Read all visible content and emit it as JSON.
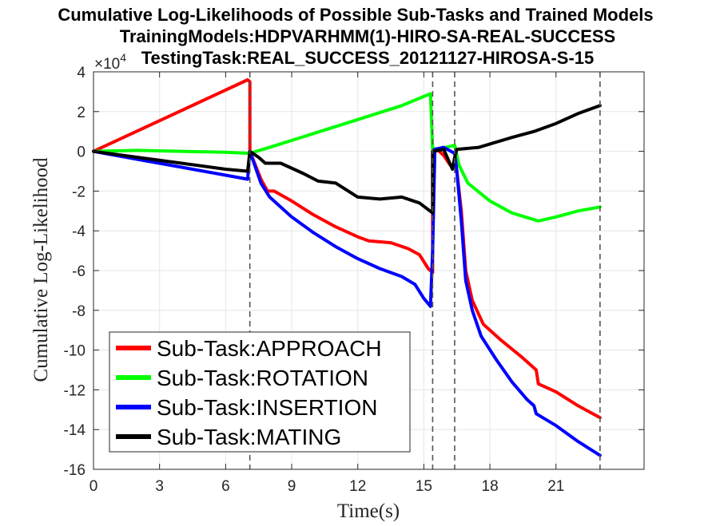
{
  "chart_data": {
    "type": "line",
    "title_lines": [
      "Cumulative Log-Likelihoods of Possible Sub-Tasks and Trained Models",
      "TrainingModels:HDPVARHMM(1)-HIRO-SA-REAL-SUCCESS",
      "TestingTask:REAL_SUCCESS_20121127-HIROSA-S-15"
    ],
    "xlabel": "Time(s)",
    "ylabel": "Cumulative Log-Likelihood",
    "y_exponent_label": "×10",
    "y_exponent_power": "4",
    "xlim": [
      0,
      25
    ],
    "ylim": [
      -16,
      4
    ],
    "xticks": [
      0,
      3,
      6,
      9,
      12,
      15,
      18,
      21
    ],
    "yticks": [
      4,
      2,
      0,
      -2,
      -4,
      -6,
      -8,
      -10,
      -12,
      -14,
      -16
    ],
    "grid": true,
    "legend_position": "bottom-left",
    "event_lines_x": [
      7.1,
      15.4,
      16.4,
      23.0
    ],
    "series": [
      {
        "name": "Sub-Task:APPROACH",
        "color": "#ff0000",
        "points": [
          [
            0,
            0
          ],
          [
            7.0,
            3.6
          ],
          [
            7.1,
            3.5
          ],
          [
            7.1,
            0
          ],
          [
            7.6,
            -1.4
          ],
          [
            7.9,
            -2.0
          ],
          [
            8.2,
            -2.0
          ],
          [
            9,
            -2.5
          ],
          [
            10,
            -3.2
          ],
          [
            11,
            -3.8
          ],
          [
            12,
            -4.3
          ],
          [
            12.5,
            -4.5
          ],
          [
            13.5,
            -4.6
          ],
          [
            14.3,
            -4.9
          ],
          [
            14.8,
            -5.2
          ],
          [
            15.2,
            -5.9
          ],
          [
            15.4,
            -6.1
          ],
          [
            15.4,
            0
          ],
          [
            15.6,
            0.1
          ],
          [
            15.9,
            -0.2
          ],
          [
            16.2,
            -0.7
          ],
          [
            16.4,
            -0.8
          ],
          [
            16.5,
            -1.0
          ],
          [
            16.7,
            -3.0
          ],
          [
            16.9,
            -6.0
          ],
          [
            17.2,
            -7.5
          ],
          [
            17.7,
            -8.7
          ],
          [
            18.5,
            -9.5
          ],
          [
            19.5,
            -10.4
          ],
          [
            20.1,
            -11.0
          ],
          [
            20.2,
            -11.7
          ],
          [
            21,
            -12.1
          ],
          [
            22,
            -12.8
          ],
          [
            23.0,
            -13.4
          ]
        ]
      },
      {
        "name": "Sub-Task:ROTATION",
        "color": "#00ff00",
        "points": [
          [
            0,
            0
          ],
          [
            2,
            0.05
          ],
          [
            4,
            0
          ],
          [
            6,
            -0.05
          ],
          [
            7.1,
            -0.1
          ],
          [
            8,
            0.2
          ],
          [
            10,
            0.9
          ],
          [
            12,
            1.6
          ],
          [
            14,
            2.3
          ],
          [
            15.3,
            2.9
          ],
          [
            15.4,
            0.1
          ],
          [
            16,
            0.2
          ],
          [
            16.4,
            0.3
          ],
          [
            16.6,
            -0.7
          ],
          [
            17,
            -1.6
          ],
          [
            18,
            -2.5
          ],
          [
            19,
            -3.1
          ],
          [
            20.2,
            -3.5
          ],
          [
            21,
            -3.3
          ],
          [
            22,
            -3.0
          ],
          [
            23.0,
            -2.8
          ]
        ]
      },
      {
        "name": "Sub-Task:INSERTION",
        "color": "#0000ff",
        "points": [
          [
            0,
            0
          ],
          [
            2,
            -0.4
          ],
          [
            4,
            -0.8
          ],
          [
            6,
            -1.2
          ],
          [
            7.0,
            -1.4
          ],
          [
            7.1,
            0
          ],
          [
            7.6,
            -1.6
          ],
          [
            8.0,
            -2.3
          ],
          [
            9,
            -3.3
          ],
          [
            10,
            -4.1
          ],
          [
            11,
            -4.8
          ],
          [
            12,
            -5.4
          ],
          [
            13,
            -5.9
          ],
          [
            14,
            -6.3
          ],
          [
            14.6,
            -6.7
          ],
          [
            15.0,
            -7.4
          ],
          [
            15.3,
            -7.8
          ],
          [
            15.4,
            -5.0
          ],
          [
            15.5,
            0.1
          ],
          [
            15.9,
            0.2
          ],
          [
            16.4,
            -0.1
          ],
          [
            16.5,
            -1.0
          ],
          [
            16.7,
            -3.5
          ],
          [
            16.9,
            -6.5
          ],
          [
            17.2,
            -8.0
          ],
          [
            17.6,
            -9.3
          ],
          [
            18.3,
            -10.5
          ],
          [
            19,
            -11.6
          ],
          [
            19.7,
            -12.5
          ],
          [
            20.0,
            -12.8
          ],
          [
            20.1,
            -13.2
          ],
          [
            21,
            -13.8
          ],
          [
            22,
            -14.6
          ],
          [
            23.0,
            -15.3
          ]
        ]
      },
      {
        "name": "Sub-Task:MATING",
        "color": "#000000",
        "points": [
          [
            0,
            0
          ],
          [
            2,
            -0.3
          ],
          [
            4,
            -0.6
          ],
          [
            6,
            -0.9
          ],
          [
            7.0,
            -1.0
          ],
          [
            7.1,
            0
          ],
          [
            7.5,
            -0.3
          ],
          [
            7.8,
            -0.6
          ],
          [
            8.5,
            -0.6
          ],
          [
            9.5,
            -1.1
          ],
          [
            10.2,
            -1.5
          ],
          [
            11,
            -1.6
          ],
          [
            12,
            -2.3
          ],
          [
            13,
            -2.4
          ],
          [
            14,
            -2.3
          ],
          [
            14.8,
            -2.6
          ],
          [
            15.4,
            -3.1
          ],
          [
            15.4,
            0
          ],
          [
            15.9,
            0.1
          ],
          [
            16.3,
            -0.9
          ],
          [
            16.4,
            -0.3
          ],
          [
            16.5,
            0.1
          ],
          [
            17.5,
            0.2
          ],
          [
            19,
            0.7
          ],
          [
            20,
            1.0
          ],
          [
            21,
            1.4
          ],
          [
            22,
            1.9
          ],
          [
            23.0,
            2.3
          ]
        ]
      }
    ]
  }
}
